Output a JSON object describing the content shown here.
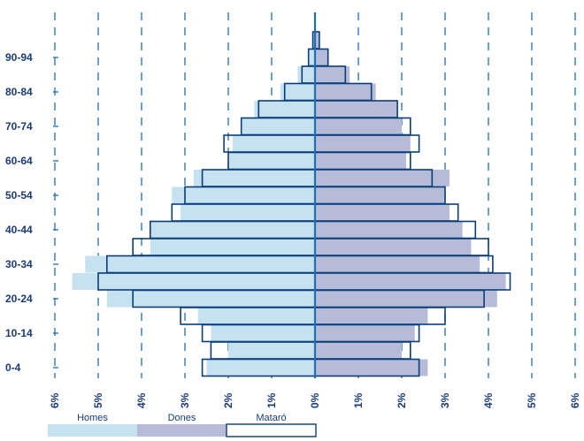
{
  "chart_data": {
    "type": "bar",
    "orientation": "horizontal",
    "chart_form": "population pyramid",
    "categories": [
      "0-4",
      "5-9",
      "10-14",
      "15-19",
      "20-24",
      "25-29",
      "30-34",
      "35-39",
      "40-44",
      "45-49",
      "50-54",
      "55-59",
      "60-64",
      "65-69",
      "70-74",
      "75-79",
      "80-84",
      "85-89",
      "90-94",
      "95+"
    ],
    "y_tick_labels": [
      "0-4",
      "10-14",
      "20-24",
      "30-34",
      "40-44",
      "50-54",
      "60-64",
      "70-74",
      "80-84",
      "90-94"
    ],
    "x_tick_labels": [
      "6%",
      "5%",
      "4%",
      "3%",
      "2%",
      "1%",
      "0%",
      "1%",
      "2%",
      "3%",
      "4%",
      "5%",
      "6%"
    ],
    "xlim": [
      -6,
      6
    ],
    "grid": true,
    "grid_style": "dashed vertical",
    "legend": {
      "position": "bottom-left",
      "items": [
        {
          "label": "Homes",
          "color": "#c6e1f0"
        },
        {
          "label": "Dones",
          "color": "#b6bcd8"
        },
        {
          "label": "Mataró",
          "color": "#ffffff",
          "border": "#0b3d7a"
        }
      ]
    },
    "series": [
      {
        "name": "Homes",
        "side": "left",
        "values": [
          2.5,
          2.0,
          2.4,
          2.7,
          4.8,
          5.6,
          5.3,
          3.8,
          3.8,
          3.1,
          3.3,
          2.8,
          2.0,
          1.9,
          1.7,
          1.4,
          0.8,
          0.4,
          0.15,
          0.05
        ]
      },
      {
        "name": "Dones",
        "side": "right",
        "values": [
          2.6,
          2.0,
          2.3,
          2.6,
          4.2,
          4.4,
          3.8,
          3.6,
          3.4,
          3.1,
          3.0,
          3.1,
          2.1,
          2.2,
          2.0,
          1.9,
          1.4,
          0.8,
          0.3,
          0.1
        ]
      },
      {
        "name": "Mataró",
        "kind": "outline",
        "male_values": [
          2.6,
          2.4,
          2.6,
          3.1,
          4.2,
          5.0,
          4.8,
          4.2,
          3.8,
          3.3,
          3.0,
          2.6,
          2.0,
          2.1,
          1.7,
          1.3,
          0.7,
          0.3,
          0.15,
          0.05
        ],
        "female_values": [
          2.4,
          2.2,
          2.4,
          3.0,
          3.9,
          4.5,
          4.1,
          4.0,
          3.7,
          3.3,
          3.0,
          2.7,
          2.2,
          2.4,
          2.2,
          1.9,
          1.3,
          0.7,
          0.3,
          0.1
        ]
      }
    ]
  },
  "colors": {
    "male_fill": "#c6e1f0",
    "female_fill": "#b6bcd8",
    "outline": "#0b3d7a",
    "grid": "#1f6fb3",
    "axis": "#1f6fb3",
    "text": "#1a3a7a"
  }
}
